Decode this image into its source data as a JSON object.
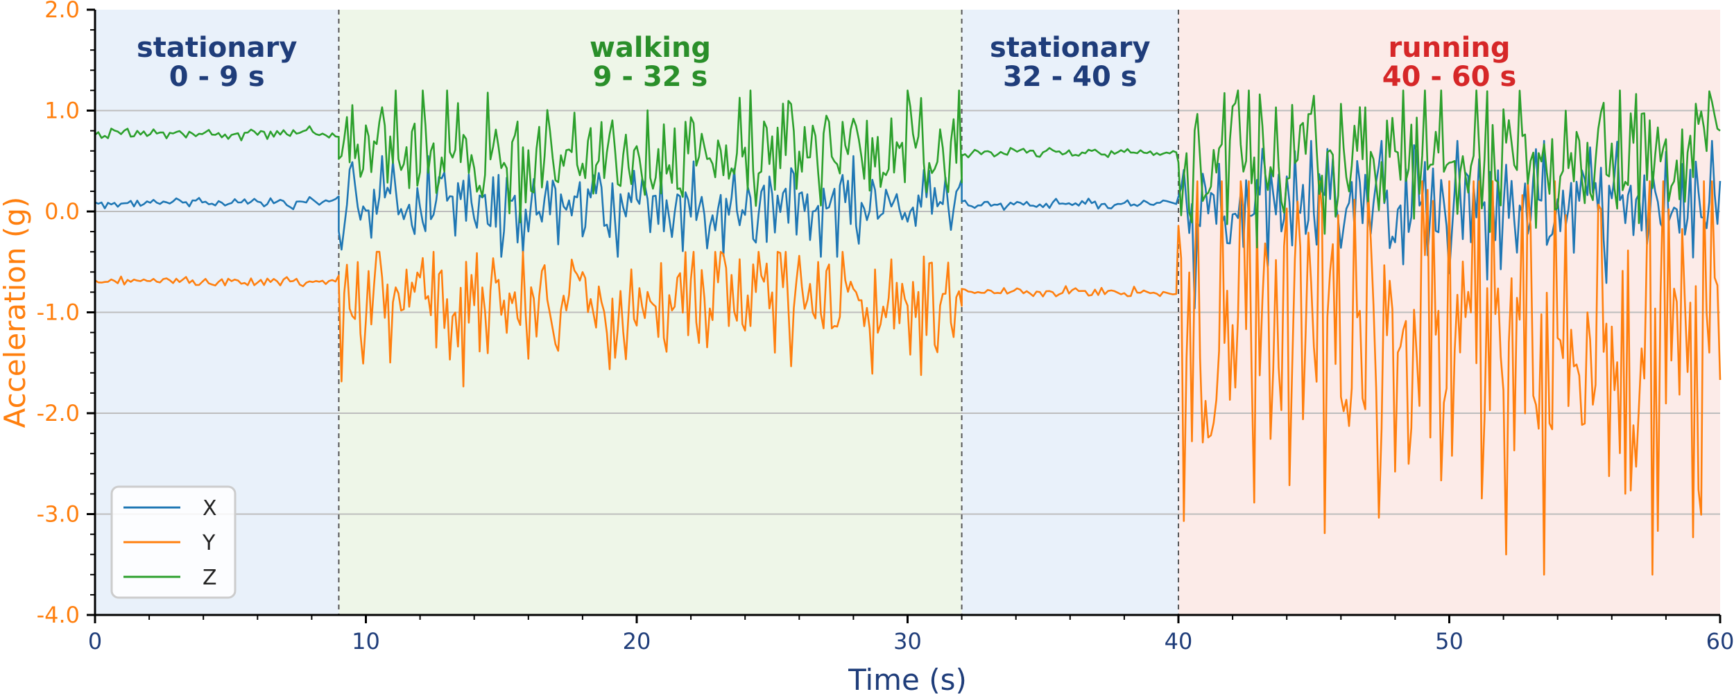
{
  "chart_data": {
    "type": "line",
    "title": "",
    "xlabel": "Time (s)",
    "ylabel": "Acceleration (g)",
    "xlim": [
      0,
      60
    ],
    "ylim": [
      -4.0,
      2.0
    ],
    "x_ticks": [
      0,
      10,
      20,
      30,
      40,
      50,
      60
    ],
    "x_tick_labels": [
      "0",
      "10",
      "20",
      "30",
      "40",
      "50",
      "60"
    ],
    "y_ticks": [
      2.0,
      1.0,
      0.0,
      -1.0,
      -2.0,
      -3.0,
      -4.0
    ],
    "y_tick_labels": [
      "2.0",
      "1.0",
      "0.0",
      "-1.0",
      "-2.0",
      "-3.0",
      "-4.0"
    ],
    "y_minor_step": 0.2,
    "grid": "horizontal at major y ticks",
    "legend_position": "bottom-left",
    "boundaries": [
      9,
      32,
      40
    ],
    "regions": [
      {
        "name": "stationary",
        "range_label": "0 - 9 s",
        "start": 0,
        "end": 9,
        "fill": "#e9f1fa",
        "text_color": "#1f3d7a"
      },
      {
        "name": "walking",
        "range_label": "9 - 32 s",
        "start": 9,
        "end": 32,
        "fill": "#eef6e8",
        "text_color": "#2a8f2a"
      },
      {
        "name": "stationary",
        "range_label": "32 - 40 s",
        "start": 32,
        "end": 40,
        "fill": "#e9f1fa",
        "text_color": "#1f3d7a"
      },
      {
        "name": "running",
        "range_label": "40 - 60 s",
        "start": 40,
        "end": 60,
        "fill": "#fcebe8",
        "text_color": "#d62728"
      }
    ],
    "series": [
      {
        "name": "X",
        "color": "#1f77b4",
        "segments": [
          {
            "start": 0,
            "end": 9,
            "mean": 0.09,
            "noise": 0.025
          },
          {
            "start": 9,
            "end": 32,
            "mean": 0.08,
            "noise": 0.22,
            "min": -0.45,
            "max": 0.55
          },
          {
            "start": 32,
            "end": 40,
            "mean": 0.07,
            "noise": 0.025
          },
          {
            "start": 40,
            "end": 60,
            "mean": 0.05,
            "noise": 0.32,
            "min": -1.0,
            "max": 0.7
          }
        ]
      },
      {
        "name": "Y",
        "color": "#ff7f0e",
        "segments": [
          {
            "start": 0,
            "end": 9,
            "mean": -0.69,
            "noise": 0.025
          },
          {
            "start": 9,
            "end": 32,
            "mean": -0.85,
            "noise": 0.3,
            "min": -1.75,
            "max": -0.4
          },
          {
            "start": 32,
            "end": 40,
            "mean": -0.8,
            "noise": 0.025
          },
          {
            "start": 40,
            "end": 60,
            "mean": -1.1,
            "noise": 1.0,
            "min": -3.6,
            "max": 0.3
          }
        ]
      },
      {
        "name": "Z",
        "color": "#2ca02c",
        "segments": [
          {
            "start": 0,
            "end": 9,
            "mean": 0.77,
            "noise": 0.025
          },
          {
            "start": 9,
            "end": 32,
            "mean": 0.6,
            "noise": 0.28,
            "min": -0.2,
            "max": 1.2
          },
          {
            "start": 32,
            "end": 40,
            "mean": 0.58,
            "noise": 0.025
          },
          {
            "start": 40,
            "end": 60,
            "mean": 0.5,
            "noise": 0.35,
            "min": -1.15,
            "max": 1.2
          }
        ]
      }
    ]
  },
  "colors": {
    "axis_text": "#ff7f0e",
    "x_axis_text": "#1f3d7a",
    "grid": "#bdbdbd",
    "boundary": "#555555"
  }
}
